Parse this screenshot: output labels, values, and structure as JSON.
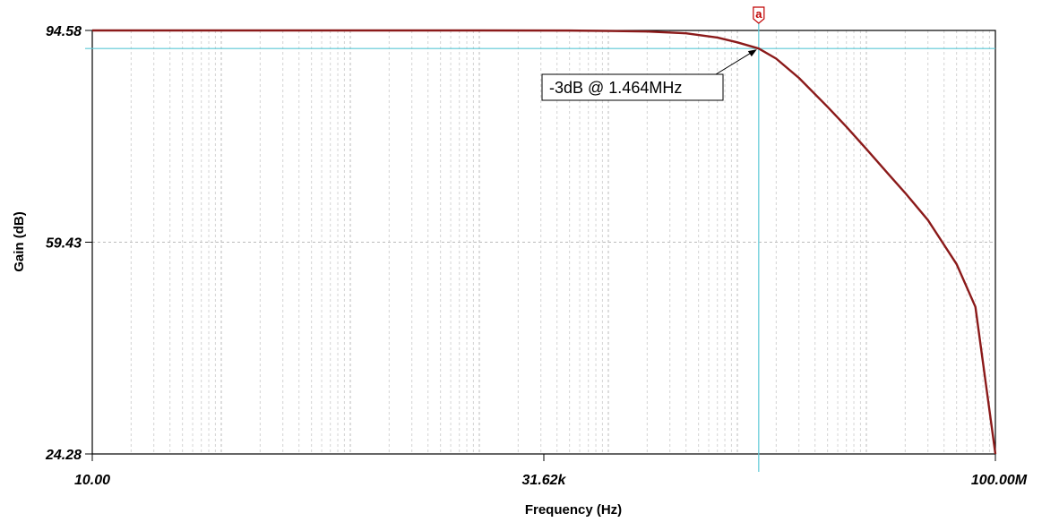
{
  "chart_data": {
    "type": "line",
    "xlabel": "Frequency (Hz)",
    "ylabel": "Gain (dB)",
    "x_scale": "log",
    "xlim": [
      10,
      100000000
    ],
    "ylim": [
      24.28,
      94.58
    ],
    "x_tick_labels": [
      {
        "value": 10,
        "label": "10.00"
      },
      {
        "value": 31620,
        "label": "31.62k"
      },
      {
        "value": 100000000,
        "label": "100.00M"
      }
    ],
    "y_tick_labels": [
      {
        "value": 24.28,
        "label": "24.28"
      },
      {
        "value": 59.43,
        "label": "59.43"
      },
      {
        "value": 94.58,
        "label": "94.58"
      }
    ],
    "grid": true,
    "colors": {
      "series": "#8b1a1a",
      "cursor": "#5bc8d6",
      "marker": "#c00000"
    },
    "series": [
      {
        "name": "",
        "x": [
          10,
          100,
          1000,
          10000,
          50000,
          100000,
          200000,
          400000,
          700000,
          1000000,
          1464000,
          2000000,
          3000000,
          5000000,
          7000000,
          10000000,
          15000000,
          20000000,
          30000000,
          50000000,
          70000000,
          100000000
        ],
        "y": [
          94.58,
          94.58,
          94.58,
          94.58,
          94.56,
          94.5,
          94.4,
          94.1,
          93.4,
          92.6,
          91.58,
          89.9,
          86.7,
          81.9,
          78.6,
          74.9,
          70.6,
          67.6,
          63.1,
          55.8,
          48.7,
          24.28
        ]
      }
    ],
    "cursor": {
      "marker_label": "a",
      "x": 1464000,
      "y": 91.58,
      "annotation": "-3dB @ 1.464MHz"
    }
  }
}
